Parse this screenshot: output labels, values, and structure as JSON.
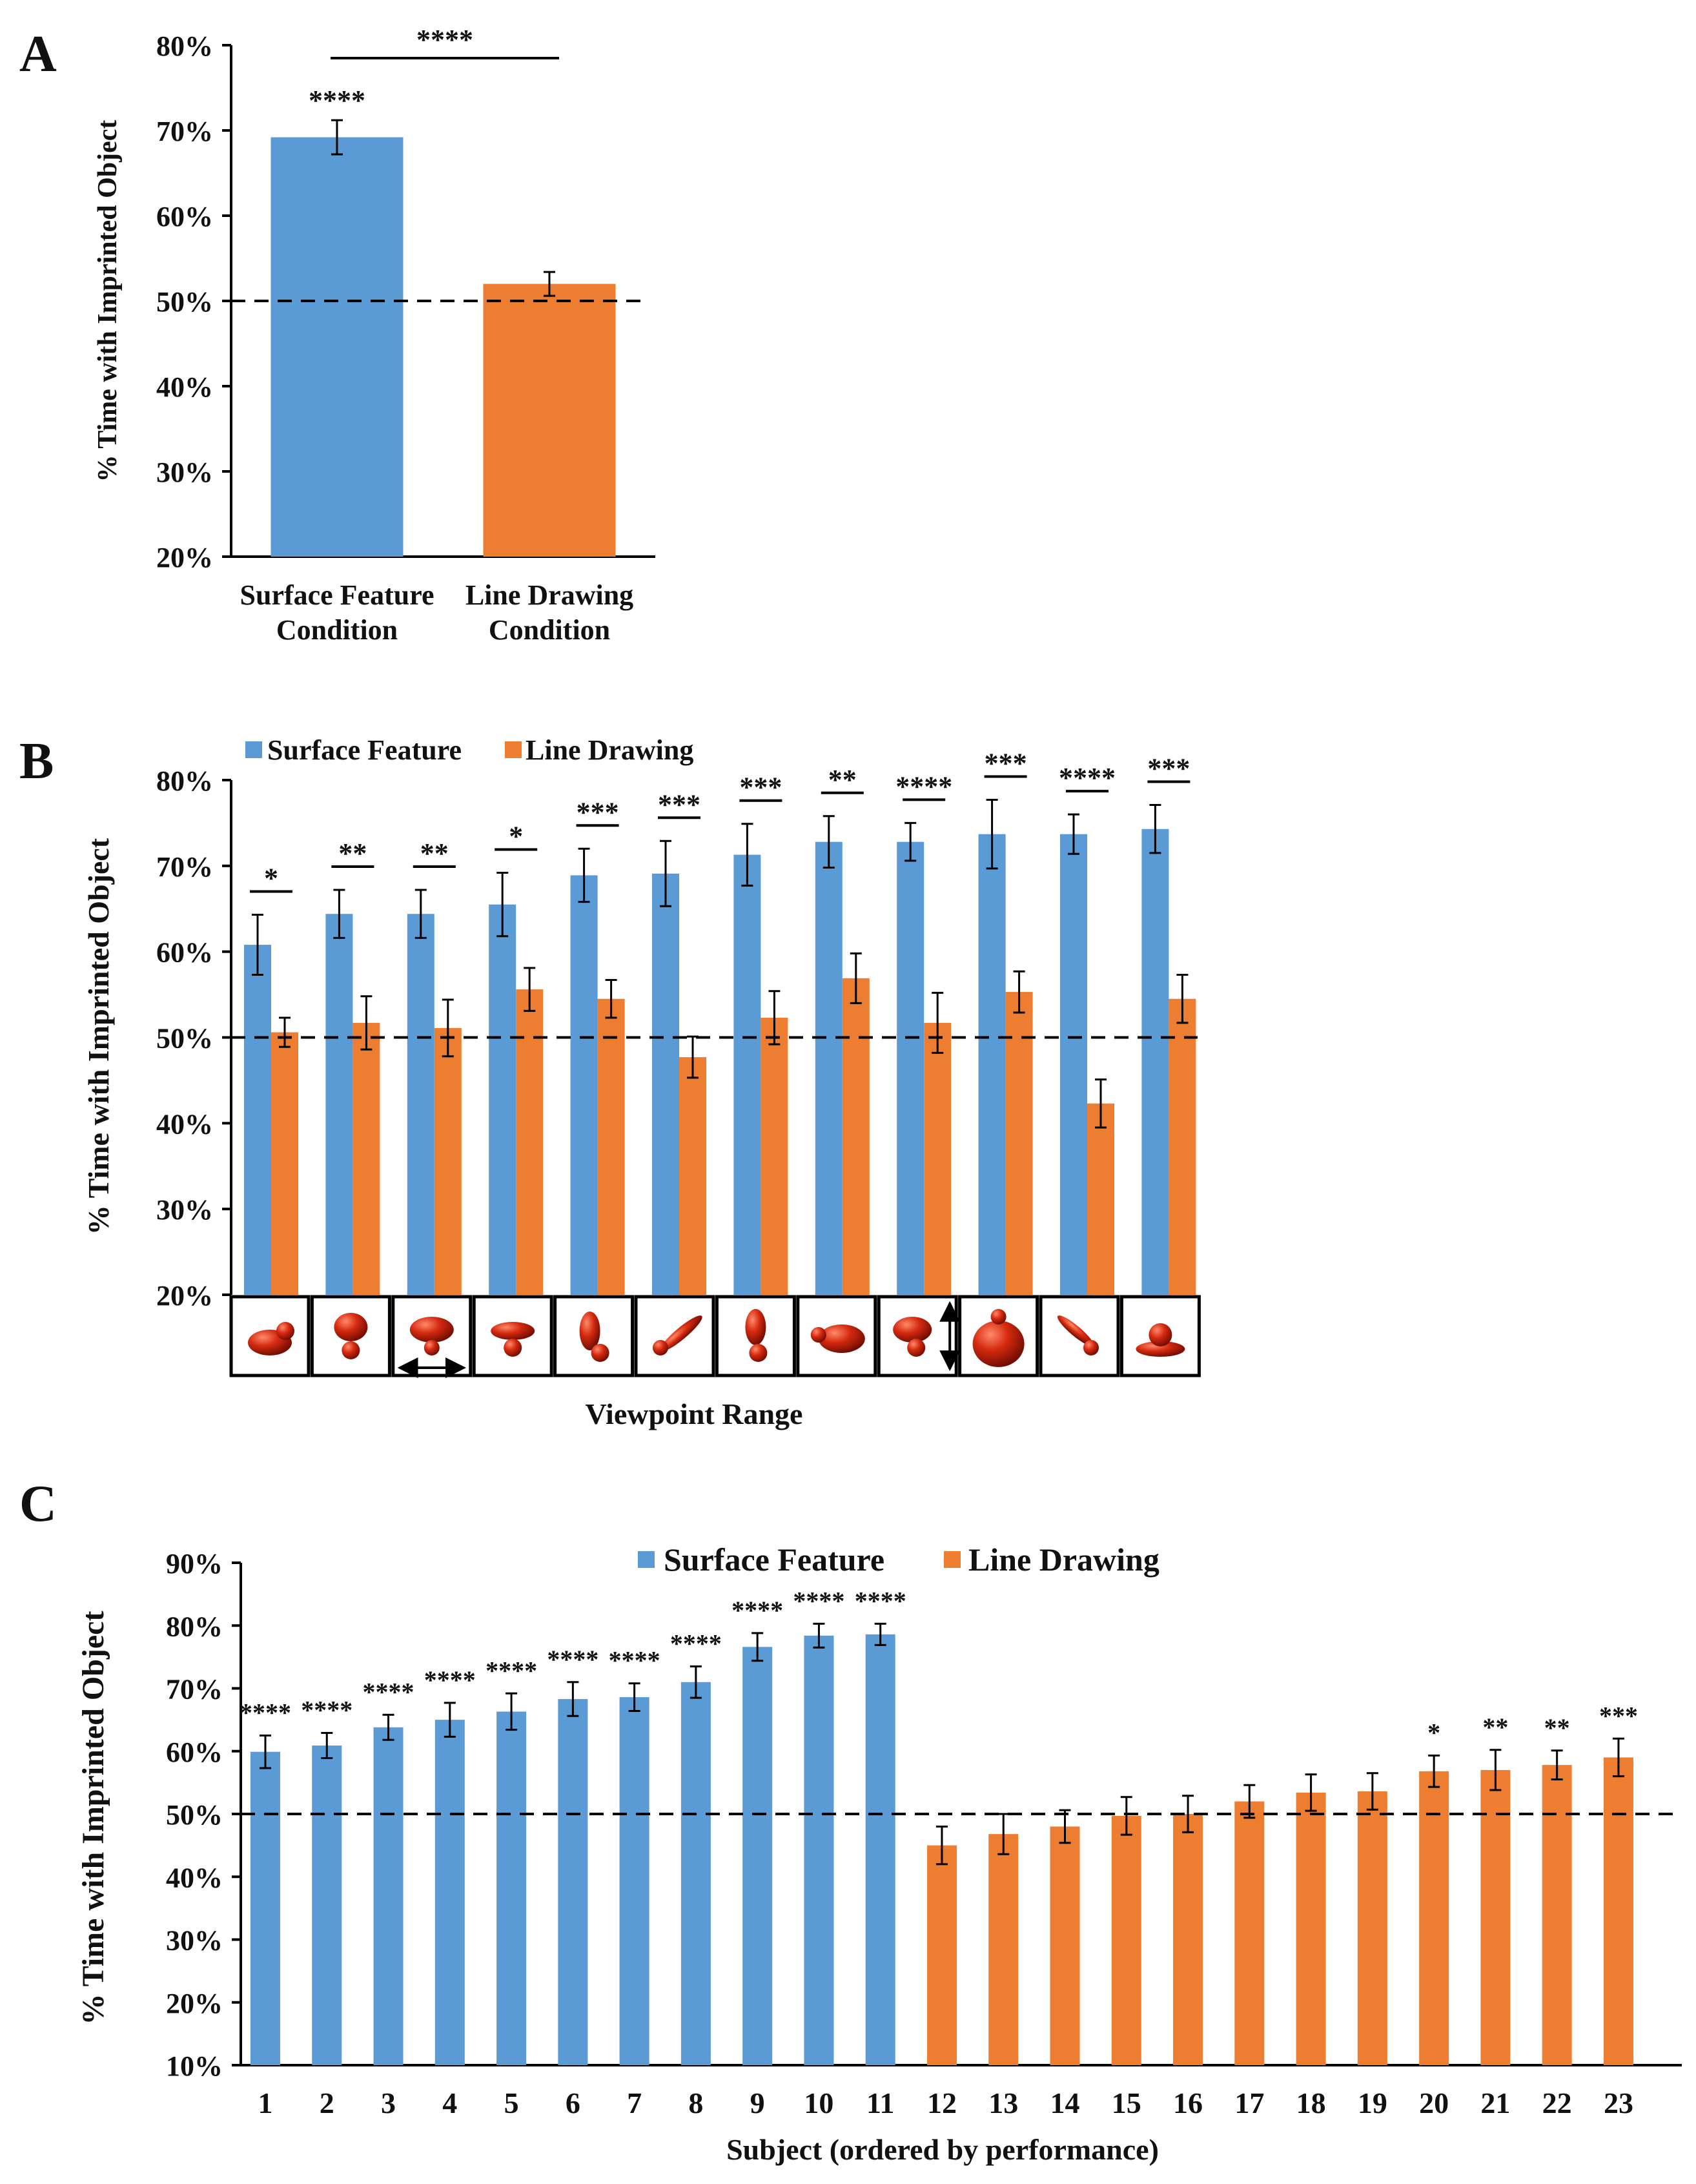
{
  "colors": {
    "surface": "#5b9bd5",
    "line": "#ed7d31",
    "axis": "#000000"
  },
  "chart_data": [
    {
      "panel": "A",
      "type": "bar",
      "ylabel": "% Time with Imprinted Object",
      "ylim": [
        20,
        80
      ],
      "ytick_labels": [
        "20%",
        "30%",
        "40%",
        "50%",
        "60%",
        "70%",
        "80%"
      ],
      "category_lines": [
        [
          "Surface Feature",
          "Condition"
        ],
        [
          "Line Drawing",
          "Condition"
        ]
      ],
      "values": [
        69.2,
        52.0
      ],
      "errors": [
        2.0,
        1.4
      ],
      "reference_line": 50,
      "significance": [
        "****",
        ""
      ],
      "comparison_mark": "****"
    },
    {
      "panel": "B",
      "type": "bar",
      "ylabel": "% Time with Imprinted Object",
      "xlabel": "Viewpoint Range",
      "ylim": [
        20,
        80
      ],
      "ytick_labels": [
        "20%",
        "30%",
        "40%",
        "50%",
        "60%",
        "70%",
        "80%"
      ],
      "legend": [
        "Surface Feature",
        "Line Drawing"
      ],
      "series": [
        {
          "name": "Surface Feature",
          "values": [
            60.8,
            64.4,
            64.4,
            65.5,
            68.9,
            69.1,
            71.3,
            72.8,
            72.8,
            73.7,
            73.7,
            74.3
          ],
          "errors": [
            3.5,
            2.8,
            2.8,
            3.7,
            3.1,
            3.8,
            3.6,
            3.0,
            2.2,
            4.0,
            2.3,
            2.8
          ]
        },
        {
          "name": "Line Drawing",
          "values": [
            50.6,
            51.7,
            51.1,
            55.6,
            54.5,
            47.7,
            52.3,
            56.9,
            51.7,
            55.3,
            42.3,
            54.5
          ],
          "errors": [
            1.7,
            3.1,
            3.3,
            2.5,
            2.2,
            2.4,
            3.1,
            2.9,
            3.5,
            2.4,
            2.8,
            2.8
          ]
        }
      ],
      "significance": [
        "*",
        "**",
        "**",
        "*",
        "***",
        "***",
        "***",
        "**",
        "****",
        "***",
        "****",
        "***"
      ],
      "reference_line": 50,
      "view_arrows": [
        "",
        "",
        "horizontal",
        "",
        "",
        "",
        "",
        "",
        "vertical",
        "",
        "",
        ""
      ]
    },
    {
      "panel": "C",
      "type": "bar",
      "ylabel": "% Time with Imprinted Object",
      "xlabel": "Subject (ordered by performance)",
      "ylim": [
        10,
        90
      ],
      "ytick_labels": [
        "10%",
        "20%",
        "30%",
        "40%",
        "50%",
        "60%",
        "70%",
        "80%",
        "90%"
      ],
      "legend": [
        "Surface Feature",
        "Line Drawing"
      ],
      "categories": [
        "1",
        "2",
        "3",
        "4",
        "5",
        "6",
        "7",
        "8",
        "9",
        "10",
        "11",
        "12",
        "13",
        "14",
        "15",
        "16",
        "17",
        "18",
        "19",
        "20",
        "21",
        "22",
        "23"
      ],
      "values": [
        59.9,
        60.9,
        63.8,
        65.0,
        66.3,
        68.3,
        68.6,
        71.0,
        76.6,
        78.4,
        78.6,
        45.0,
        46.8,
        48.0,
        49.7,
        50.0,
        52.0,
        53.4,
        53.6,
        56.8,
        57.0,
        57.8,
        59.0
      ],
      "errors": [
        2.6,
        2.0,
        2.0,
        2.7,
        2.9,
        2.7,
        2.2,
        2.5,
        2.2,
        1.9,
        1.7,
        3.0,
        3.2,
        2.6,
        3.0,
        2.9,
        2.6,
        2.9,
        2.9,
        2.5,
        3.2,
        2.3,
        3.0
      ],
      "groups": [
        "Surface Feature",
        "Surface Feature",
        "Surface Feature",
        "Surface Feature",
        "Surface Feature",
        "Surface Feature",
        "Surface Feature",
        "Surface Feature",
        "Surface Feature",
        "Surface Feature",
        "Surface Feature",
        "Line Drawing",
        "Line Drawing",
        "Line Drawing",
        "Line Drawing",
        "Line Drawing",
        "Line Drawing",
        "Line Drawing",
        "Line Drawing",
        "Line Drawing",
        "Line Drawing",
        "Line Drawing",
        "Line Drawing"
      ],
      "significance": [
        "****",
        "****",
        "****",
        "****",
        "****",
        "****",
        "****",
        "****",
        "****",
        "****",
        "****",
        "",
        "",
        "",
        "",
        "",
        "",
        "",
        "",
        "*",
        "**",
        "**",
        "***"
      ],
      "reference_line": 50
    }
  ]
}
